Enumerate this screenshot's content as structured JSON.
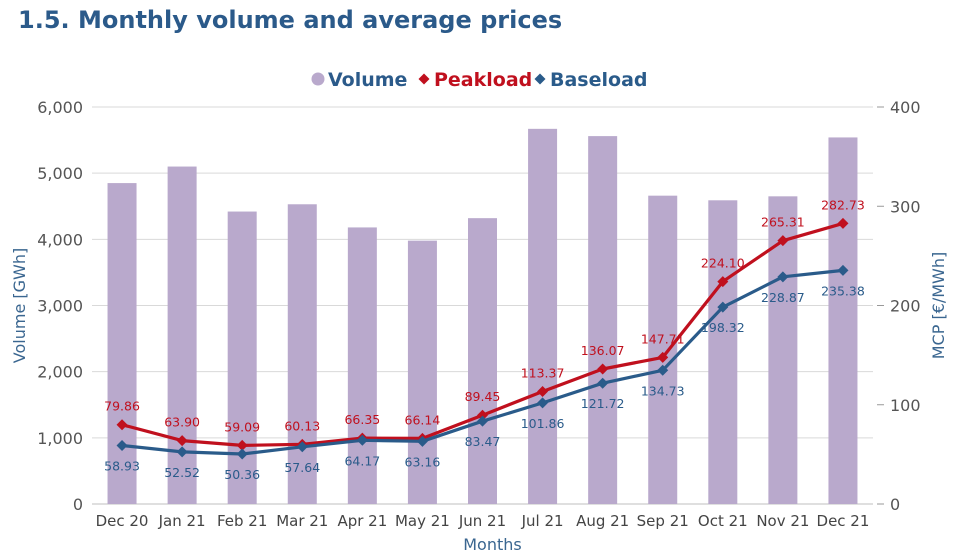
{
  "chart_data": {
    "type": "bar",
    "title": "1.5.  Monthly volume and average prices",
    "xlabel": "Months",
    "ylabel_left": "Volume [GWh]",
    "ylabel_right": "MCP [€/MWh]",
    "ylim_left": [
      0,
      6000
    ],
    "ylim_right": [
      0,
      400
    ],
    "yticks_left": [
      "0",
      "1,000",
      "2,000",
      "3,000",
      "4,000",
      "5,000",
      "6,000"
    ],
    "yticks_right": [
      "0",
      "100",
      "200",
      "300",
      "400"
    ],
    "grid": true,
    "legend_position": "top",
    "categories": [
      "Dec 20",
      "Jan 21",
      "Feb 21",
      "Mar 21",
      "Apr 21",
      "May 21",
      "Jun 21",
      "Jul 21",
      "Aug 21",
      "Sep 21",
      "Oct 21",
      "Nov 21",
      "Dec 21"
    ],
    "series": [
      {
        "name": "Volume",
        "type": "bar",
        "axis": "left",
        "color": "#b9a9cc",
        "values": [
          4850,
          5100,
          4420,
          4530,
          4180,
          3980,
          4320,
          5670,
          5560,
          4660,
          4590,
          4650,
          5540
        ]
      },
      {
        "name": "Peakload",
        "type": "line",
        "axis": "right",
        "color": "#c0101e",
        "values": [
          79.86,
          63.9,
          59.09,
          60.13,
          66.35,
          66.14,
          89.45,
          113.37,
          136.07,
          147.71,
          224.1,
          265.31,
          282.73
        ],
        "labels": [
          "79.86",
          "63.90",
          "59.09",
          "60.13",
          "66.35",
          "66.14",
          "89.45",
          "113.37",
          "136.07",
          "147.71",
          "224.10",
          "265.31",
          "282.73"
        ]
      },
      {
        "name": "Baseload",
        "type": "line",
        "axis": "right",
        "color": "#2a5b8a",
        "values": [
          58.93,
          52.52,
          50.36,
          57.64,
          64.17,
          63.16,
          83.47,
          101.86,
          121.72,
          134.73,
          198.32,
          228.87,
          235.38
        ],
        "labels": [
          "58.93",
          "52.52",
          "50.36",
          "57.64",
          "64.17",
          "63.16",
          "83.47",
          "101.86",
          "121.72",
          "134.73",
          "198.32",
          "228.87",
          "235.38"
        ]
      }
    ]
  }
}
